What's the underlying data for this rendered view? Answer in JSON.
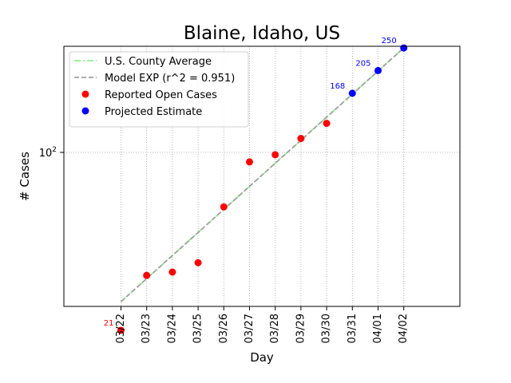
{
  "chart_data": {
    "type": "line",
    "title": "Blaine, Idaho, US",
    "xlabel": "Day",
    "ylabel": "# Cases",
    "y_scale": "log",
    "categories": [
      "03/22",
      "03/23",
      "03/24",
      "03/25",
      "03/26",
      "03/27",
      "03/28",
      "03/29",
      "03/30",
      "03/31",
      "04/01",
      "04/02"
    ],
    "y_ticks": [
      {
        "value": 100,
        "base": "10",
        "exp": "2"
      }
    ],
    "grid": true,
    "legend_position": "top-left",
    "series": [
      {
        "name": "U.S. County Average",
        "style": "dashdot-line",
        "color": "#90ee90",
        "x": [
          "03/22",
          "04/02"
        ],
        "values": [
          27,
          250
        ]
      },
      {
        "name": "Model EXP (r^2 = 0.951)",
        "style": "dashed-line",
        "color": "#a0a0a0",
        "x": [
          "03/22",
          "04/02"
        ],
        "values": [
          27,
          250
        ]
      },
      {
        "name": "Reported Open Cases",
        "style": "points",
        "color": "#ff0000",
        "x": [
          "03/22",
          "03/23",
          "03/24",
          "03/25",
          "03/26",
          "03/27",
          "03/28",
          "03/29",
          "03/30"
        ],
        "values": [
          21,
          34,
          35,
          38,
          62,
          92,
          98,
          113,
          129
        ]
      },
      {
        "name": "Projected Estimate",
        "style": "points",
        "color": "#0000ff",
        "x": [
          "03/31",
          "04/01",
          "04/02"
        ],
        "values": [
          168,
          205,
          250
        ]
      }
    ],
    "annotations": [
      {
        "x": "03/22",
        "value": 21,
        "text": "21",
        "color": "#ff0000"
      },
      {
        "x": "03/31",
        "value": 168,
        "text": "168",
        "color": "#0000ff"
      },
      {
        "x": "04/01",
        "value": 205,
        "text": "205",
        "color": "#0000ff"
      },
      {
        "x": "04/02",
        "value": 250,
        "text": "250",
        "color": "#0000ff"
      }
    ]
  }
}
